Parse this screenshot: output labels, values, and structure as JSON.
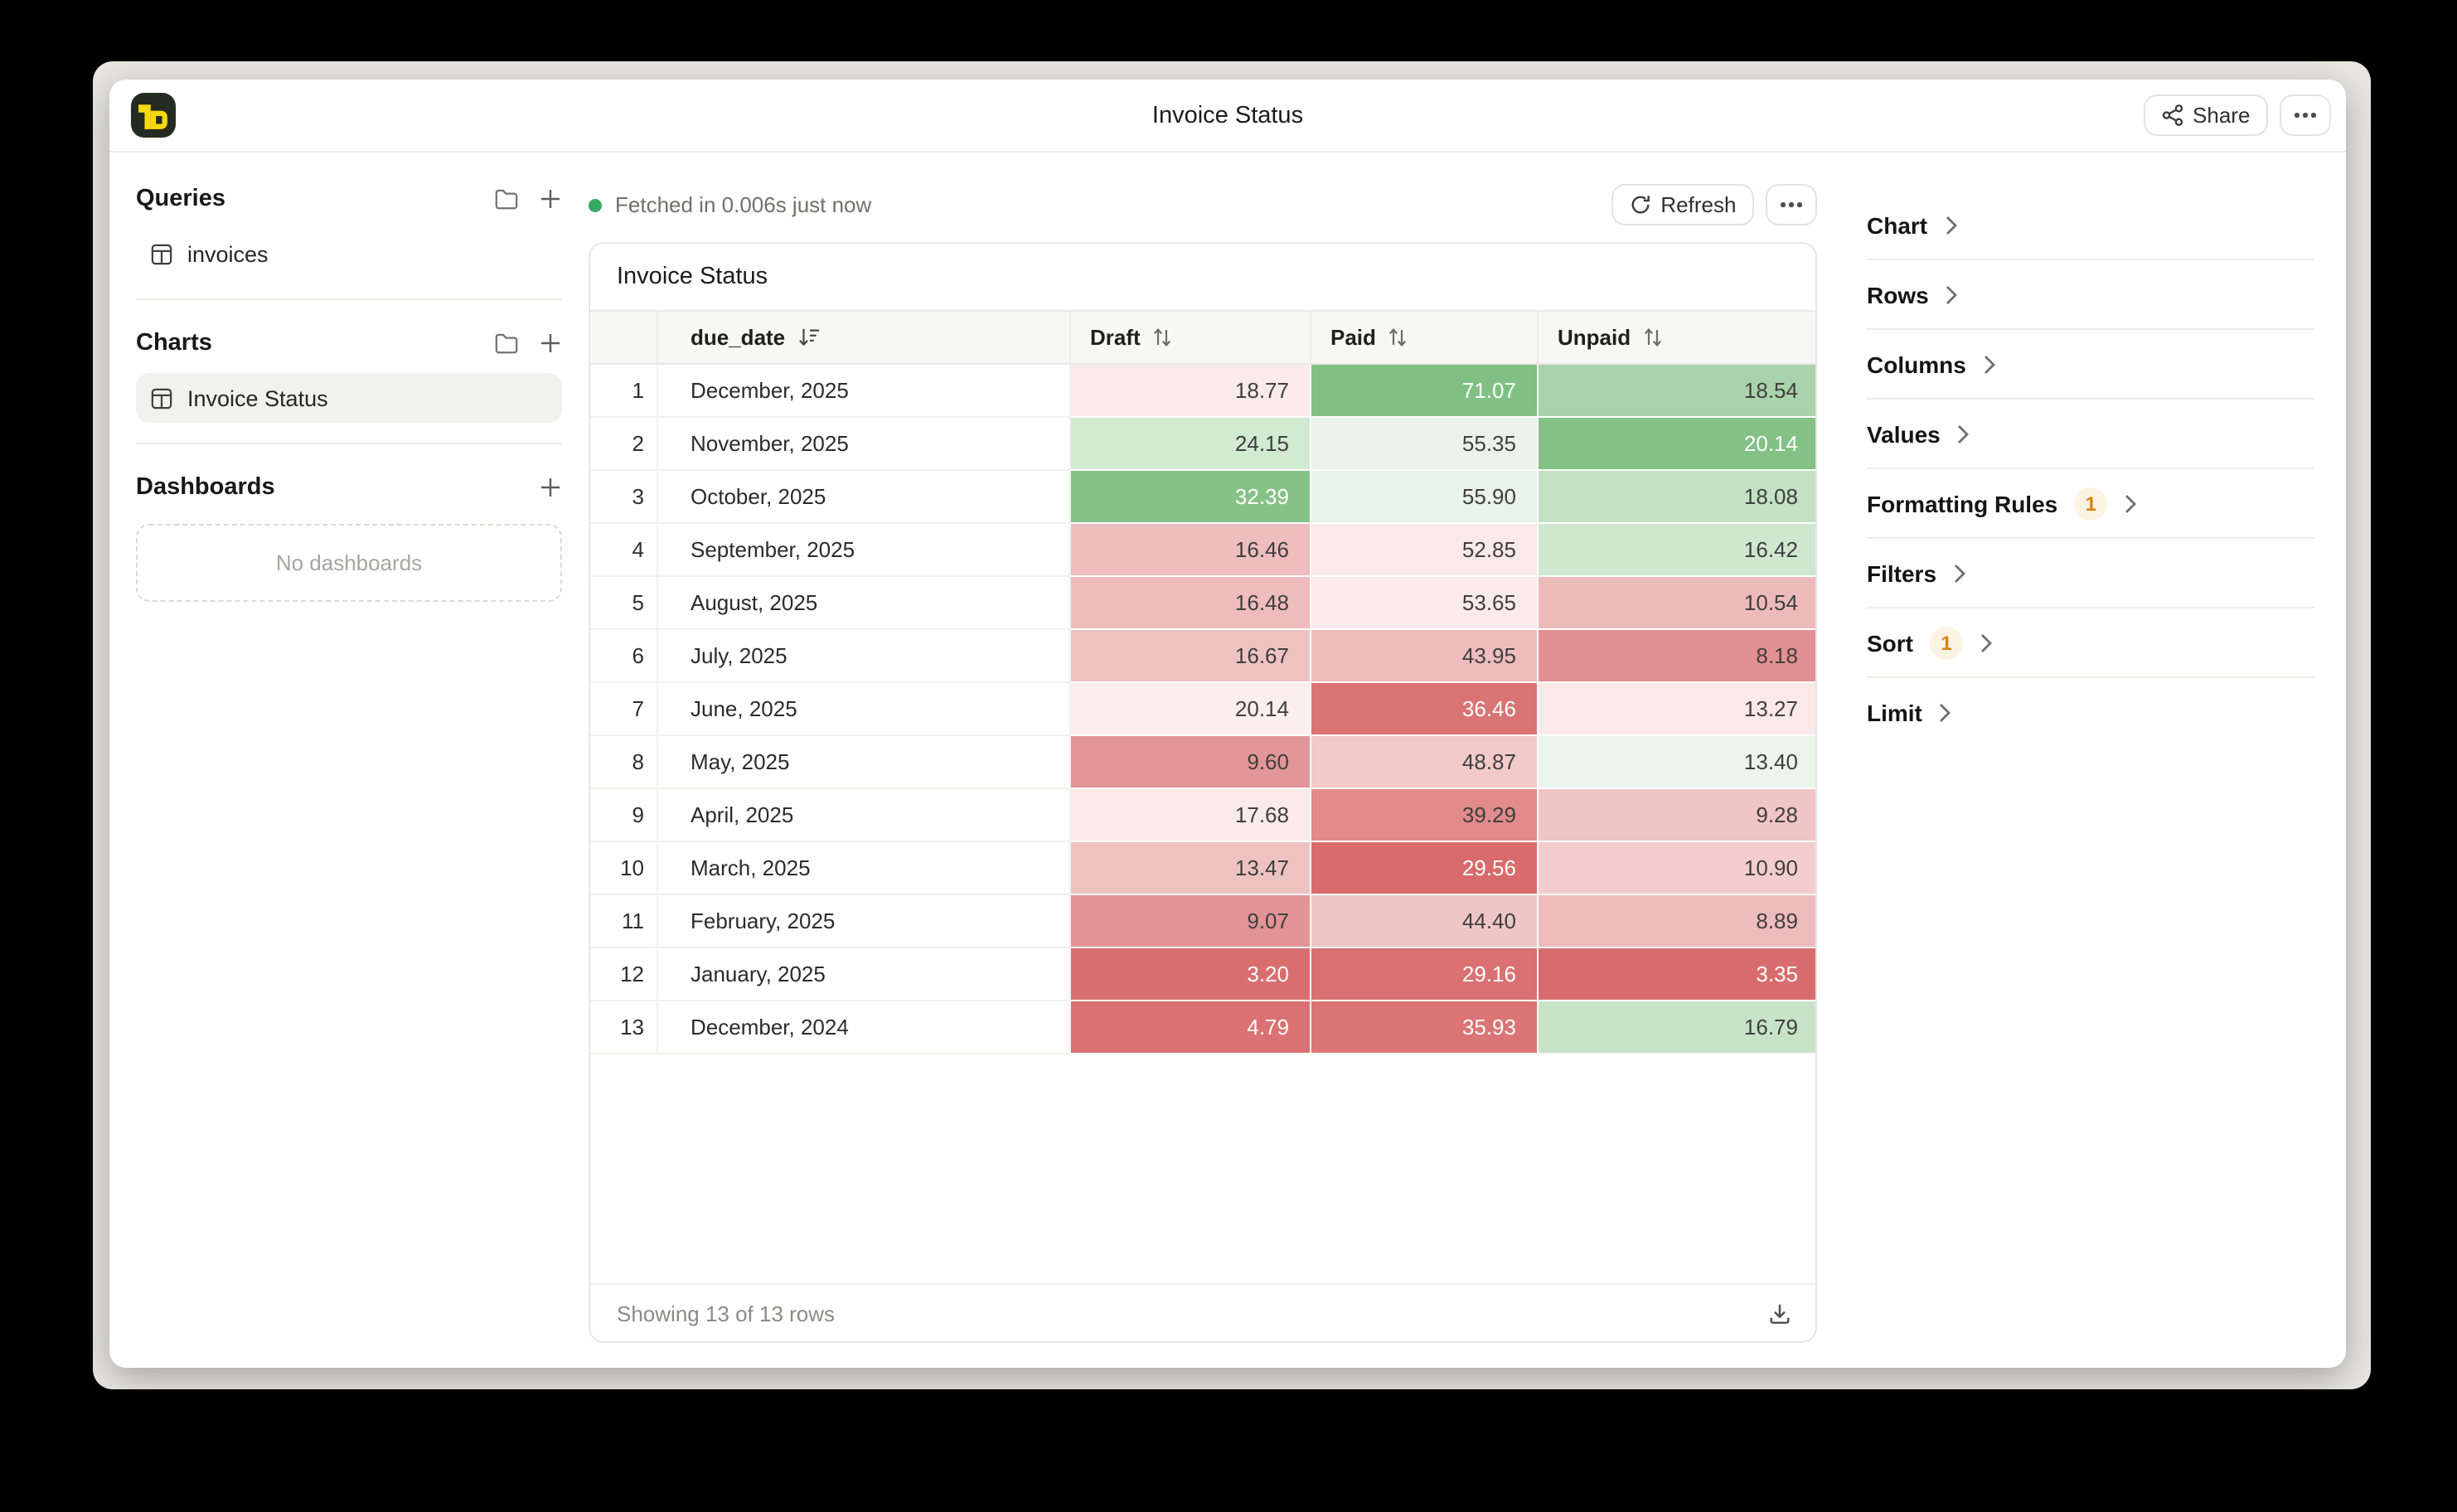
{
  "window": {
    "title": "Invoice Status",
    "share_label": "Share"
  },
  "sidebar": {
    "queries_header": "Queries",
    "queries": [
      {
        "label": "invoices"
      }
    ],
    "charts_header": "Charts",
    "charts": [
      {
        "label": "Invoice Status",
        "selected": true
      }
    ],
    "dashboards_header": "Dashboards",
    "dashboards_empty": "No dashboards"
  },
  "main": {
    "status_text": "Fetched in 0.006s just now",
    "refresh_label": "Refresh",
    "card_title": "Invoice Status",
    "footer_text": "Showing 13 of 13 rows"
  },
  "table": {
    "columns": {
      "date": "due_date",
      "c1": "Draft",
      "c2": "Paid",
      "c3": "Unpaid"
    },
    "sorted_column": "due_date",
    "sort_direction": "desc",
    "rows": [
      {
        "n": "1",
        "date": "December, 2025",
        "cells": [
          {
            "v": "18.77",
            "bg": "#faeaea",
            "fg": "dark"
          },
          {
            "v": "71.07",
            "bg": "#80c083",
            "fg": "light"
          },
          {
            "v": "18.54",
            "bg": "#aad2ab",
            "fg": "dark"
          }
        ]
      },
      {
        "n": "2",
        "date": "November, 2025",
        "cells": [
          {
            "v": "24.15",
            "bg": "#d2e9d2",
            "fg": "dark"
          },
          {
            "v": "55.35",
            "bg": "#e9f3e9",
            "fg": "dark"
          },
          {
            "v": "20.14",
            "bg": "#83c186",
            "fg": "light"
          }
        ]
      },
      {
        "n": "3",
        "date": "October, 2025",
        "cells": [
          {
            "v": "32.39",
            "bg": "#86c288",
            "fg": "light"
          },
          {
            "v": "55.90",
            "bg": "#e8f3e9",
            "fg": "dark"
          },
          {
            "v": "18.08",
            "bg": "#c4e1c4",
            "fg": "dark"
          }
        ]
      },
      {
        "n": "4",
        "date": "September, 2025",
        "cells": [
          {
            "v": "16.46",
            "bg": "#eebdbd",
            "fg": "dark"
          },
          {
            "v": "52.85",
            "bg": "#fbe9e9",
            "fg": "dark"
          },
          {
            "v": "16.42",
            "bg": "#cfe7cf",
            "fg": "dark"
          }
        ]
      },
      {
        "n": "5",
        "date": "August, 2025",
        "cells": [
          {
            "v": "16.48",
            "bg": "#eebcbc",
            "fg": "dark"
          },
          {
            "v": "53.65",
            "bg": "#fbeaea",
            "fg": "dark"
          },
          {
            "v": "10.54",
            "bg": "#edbaba",
            "fg": "dark"
          }
        ]
      },
      {
        "n": "6",
        "date": "July, 2025",
        "cells": [
          {
            "v": "16.67",
            "bg": "#efc2c2",
            "fg": "dark"
          },
          {
            "v": "43.95",
            "bg": "#eebcbd",
            "fg": "dark"
          },
          {
            "v": "8.18",
            "bg": "#e29091",
            "fg": "dark"
          }
        ]
      },
      {
        "n": "7",
        "date": "June, 2025",
        "cells": [
          {
            "v": "20.14",
            "bg": "#fceeee",
            "fg": "dark"
          },
          {
            "v": "36.46",
            "bg": "#d97374",
            "fg": "light"
          },
          {
            "v": "13.27",
            "bg": "#fbe9e9",
            "fg": "dark"
          }
        ]
      },
      {
        "n": "8",
        "date": "May, 2025",
        "cells": [
          {
            "v": "9.60",
            "bg": "#e39697",
            "fg": "dark"
          },
          {
            "v": "48.87",
            "bg": "#f2caca",
            "fg": "dark"
          },
          {
            "v": "13.40",
            "bg": "#ecf5ec",
            "fg": "dark"
          }
        ]
      },
      {
        "n": "9",
        "date": "April, 2025",
        "cells": [
          {
            "v": "17.68",
            "bg": "#fbeaea",
            "fg": "dark"
          },
          {
            "v": "39.29",
            "bg": "#e18b8c",
            "fg": "dark"
          },
          {
            "v": "9.28",
            "bg": "#f0c5c5",
            "fg": "dark"
          }
        ]
      },
      {
        "n": "10",
        "date": "March, 2025",
        "cells": [
          {
            "v": "13.47",
            "bg": "#efc2c2",
            "fg": "dark"
          },
          {
            "v": "29.56",
            "bg": "#d96b6c",
            "fg": "light"
          },
          {
            "v": "10.90",
            "bg": "#f3cdcd",
            "fg": "dark"
          }
        ]
      },
      {
        "n": "11",
        "date": "February, 2025",
        "cells": [
          {
            "v": "9.07",
            "bg": "#e29394",
            "fg": "dark"
          },
          {
            "v": "44.40",
            "bg": "#efc6c6",
            "fg": "dark"
          },
          {
            "v": "8.89",
            "bg": "#eebbbc",
            "fg": "dark"
          }
        ]
      },
      {
        "n": "12",
        "date": "January, 2025",
        "cells": [
          {
            "v": "3.20",
            "bg": "#d96e6f",
            "fg": "light"
          },
          {
            "v": "29.16",
            "bg": "#d97071",
            "fg": "light"
          },
          {
            "v": "3.35",
            "bg": "#d86c6d",
            "fg": "light"
          }
        ]
      },
      {
        "n": "13",
        "date": "December, 2024",
        "cells": [
          {
            "v": "4.79",
            "bg": "#da7172",
            "fg": "light"
          },
          {
            "v": "35.93",
            "bg": "#da7475",
            "fg": "light"
          },
          {
            "v": "16.79",
            "bg": "#c7e3c7",
            "fg": "dark"
          }
        ]
      }
    ]
  },
  "inspector": {
    "items": [
      {
        "label": "Chart",
        "badge": ""
      },
      {
        "label": "Rows",
        "badge": ""
      },
      {
        "label": "Columns",
        "badge": ""
      },
      {
        "label": "Values",
        "badge": ""
      },
      {
        "label": "Formatting Rules",
        "badge": "1"
      },
      {
        "label": "Filters",
        "badge": ""
      },
      {
        "label": "Sort",
        "badge": "1"
      },
      {
        "label": "Limit",
        "badge": ""
      }
    ]
  },
  "colors": {
    "accent_yellow": "#f6d90d",
    "logo_bg": "#242b21",
    "status_green": "#35a863",
    "badge_text": "#d9830f",
    "badge_bg": "#fcf3e2",
    "desktop_bg": "#e9e7e2",
    "cell_text_dark": "#3f3f3f",
    "cell_text_light": "#ffffff"
  }
}
